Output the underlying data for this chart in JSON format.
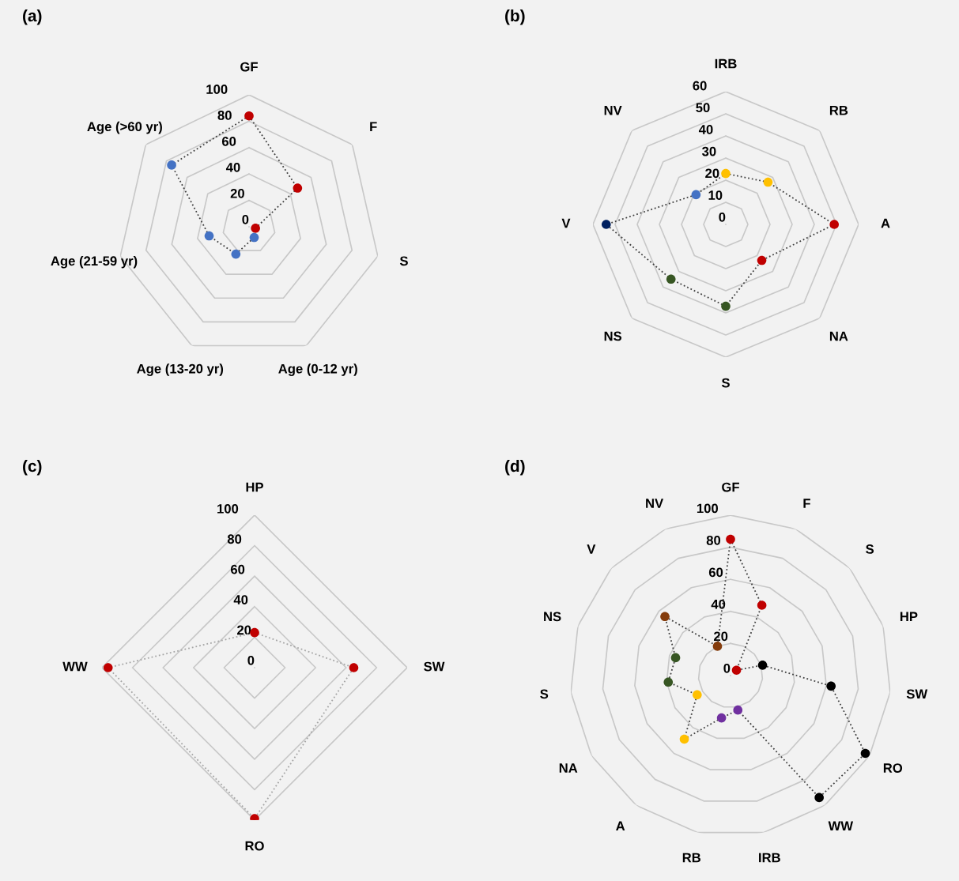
{
  "chart_data": [
    {
      "type": "radar",
      "title": "(a)",
      "categories": [
        "GF",
        "F",
        "S",
        "Age (0-12 yr)",
        "Age (13-20 yr)",
        "Age (21-59 yr)",
        "Age (>60 yr)"
      ],
      "series": [
        {
          "color": "#404040",
          "colors": [
            "#c00000",
            "#c00000",
            "#c00000",
            "#4472c4",
            "#4472c4",
            "#4472c4",
            "#4472c4"
          ],
          "values": [
            84,
            47,
            5,
            9,
            23,
            31,
            75
          ]
        }
      ],
      "ylim": [
        0,
        100
      ],
      "yticks": [
        0,
        20,
        40,
        60,
        80,
        100
      ],
      "grid": "y",
      "marker": "circle",
      "line_style": "dotted"
    },
    {
      "type": "radar",
      "title": "(b)",
      "categories": [
        "IRB",
        "RB",
        "A",
        "NA",
        "S",
        "NS",
        "V",
        "NV"
      ],
      "series": [
        {
          "color": "#404040",
          "colors": [
            "#ffc000",
            "#ffc000",
            "#c00000",
            "#c00000",
            "#375623",
            "#375623",
            "#002060",
            "#4472c4"
          ],
          "values": [
            23,
            27,
            49,
            23,
            37,
            35,
            54,
            19
          ]
        }
      ],
      "ylim": [
        0,
        60
      ],
      "yticks": [
        0,
        10,
        20,
        30,
        40,
        50,
        60
      ],
      "grid": "y",
      "marker": "circle",
      "line_style": "dotted"
    },
    {
      "type": "radar",
      "title": "(c)",
      "categories": [
        "HP",
        "SW",
        "RO",
        "WW"
      ],
      "series": [
        {
          "color": "#a6a6a6",
          "colors": [
            "#c00000",
            "#c00000",
            "#c00000",
            "#c00000"
          ],
          "values": [
            23,
            65,
            99,
            96
          ]
        }
      ],
      "ylim": [
        0,
        100
      ],
      "yticks": [
        0,
        20,
        40,
        60,
        80,
        100
      ],
      "grid": "y",
      "marker": "circle",
      "line_style": "dotted"
    },
    {
      "type": "radar",
      "title": "(d)",
      "categories": [
        "GF",
        "F",
        "S",
        "HP",
        "SW",
        "RO",
        "WW",
        "IRB",
        "RB",
        "A",
        "NA",
        "S",
        "NS",
        "V",
        "NV"
      ],
      "series": [
        {
          "color": "#404040",
          "colors": [
            "#c00000",
            "#c00000",
            "#c00000",
            "#000000",
            "#000000",
            "#000000",
            "#000000",
            "#7030a0",
            "#7030a0",
            "#ffc000",
            "#ffc000",
            "#375623",
            "#375623",
            "#843c0c",
            "#843c0c"
          ],
          "values": [
            85,
            48,
            5,
            21,
            63,
            97,
            94,
            22,
            27,
            49,
            24,
            39,
            36,
            55,
            20
          ]
        }
      ],
      "ylim": [
        0,
        100
      ],
      "yticks": [
        0,
        20,
        40,
        60,
        80,
        100
      ],
      "grid": "y",
      "marker": "circle",
      "line_style": "dotted"
    }
  ]
}
